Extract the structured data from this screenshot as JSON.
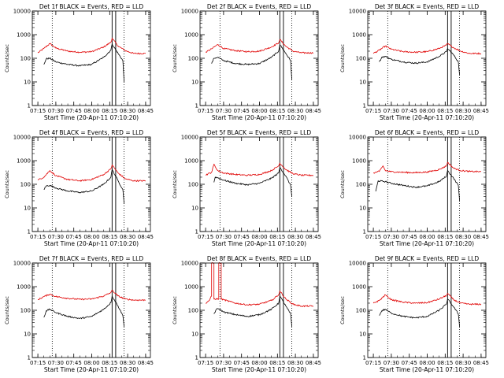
{
  "chart_data": [
    {
      "type": "line",
      "title": "Det 1f BLACK = Events, RED = LLD",
      "xlabel": "Start Time (20-Apr-11 07:10:20)",
      "ylabel": "Counts/sec",
      "yscale": "log",
      "ylim": [
        1,
        10000
      ],
      "yticks": [
        1,
        10,
        100,
        1000,
        10000
      ],
      "ytick_labels": [
        "1",
        "10",
        "100",
        "1000",
        "10000"
      ],
      "xlim": [
        "07:10:20",
        "08:49:00"
      ],
      "xticks": [
        "07:15",
        "07:30",
        "07:45",
        "08:00",
        "08:15",
        "08:30",
        "08:45"
      ],
      "vlines_dotted": [
        "07:27",
        "08:27"
      ],
      "vlines_solid": [
        "08:17",
        "08:20"
      ],
      "series": [
        {
          "color": "#e00000",
          "x": [
            "07:15",
            "07:20",
            "07:25",
            "07:30",
            "07:40",
            "07:50",
            "08:00",
            "08:10",
            "08:16",
            "08:17",
            "08:22",
            "08:28",
            "08:35",
            "08:45"
          ],
          "values": [
            170,
            260,
            420,
            270,
            200,
            180,
            190,
            300,
            480,
            700,
            330,
            210,
            160,
            160
          ]
        },
        {
          "color": "#000000",
          "x": [
            "07:20",
            "07:22",
            "07:25",
            "07:30",
            "07:40",
            "07:50",
            "08:00",
            "08:10",
            "08:16",
            "08:17",
            "08:22",
            "08:26",
            "08:27"
          ],
          "values": [
            55,
            95,
            100,
            70,
            55,
            48,
            55,
            110,
            220,
            400,
            160,
            80,
            10
          ]
        }
      ]
    },
    {
      "type": "line",
      "title": "Det 2f BLACK = Events, RED = LLD",
      "xlabel": "Start Time (20-Apr-11 07:10:20)",
      "ylabel": "Counts/sec",
      "yscale": "log",
      "ylim": [
        1,
        10000
      ],
      "yticks": [
        1,
        10,
        100,
        1000,
        10000
      ],
      "ytick_labels": [
        "1",
        "10",
        "100",
        "1000",
        "10000"
      ],
      "xlim": [
        "07:10:20",
        "08:49:00"
      ],
      "xticks": [
        "07:15",
        "07:30",
        "07:45",
        "08:00",
        "08:15",
        "08:30",
        "08:45"
      ],
      "vlines_dotted": [
        "07:27",
        "08:27"
      ],
      "vlines_solid": [
        "08:17",
        "08:20"
      ],
      "series": [
        {
          "color": "#e00000",
          "x": [
            "07:15",
            "07:20",
            "07:25",
            "07:30",
            "07:40",
            "07:50",
            "08:00",
            "08:10",
            "08:16",
            "08:17",
            "08:22",
            "08:28",
            "08:35",
            "08:45"
          ],
          "values": [
            180,
            250,
            380,
            260,
            210,
            190,
            200,
            300,
            450,
            620,
            320,
            200,
            170,
            170
          ]
        },
        {
          "color": "#000000",
          "x": [
            "07:20",
            "07:22",
            "07:25",
            "07:30",
            "07:40",
            "07:50",
            "08:00",
            "08:10",
            "08:16",
            "08:17",
            "08:22",
            "08:26",
            "08:27"
          ],
          "values": [
            60,
            100,
            110,
            80,
            60,
            55,
            60,
            110,
            200,
            380,
            160,
            80,
            12
          ]
        }
      ]
    },
    {
      "type": "line",
      "title": "Det 3f BLACK = Events, RED = LLD",
      "xlabel": "Start Time (20-Apr-11 07:10:20)",
      "ylabel": "Counts/sec",
      "yscale": "log",
      "ylim": [
        1,
        10000
      ],
      "yticks": [
        1,
        10,
        100,
        1000,
        10000
      ],
      "ytick_labels": [
        "1",
        "10",
        "100",
        "1000",
        "10000"
      ],
      "xlim": [
        "07:10:20",
        "08:49:00"
      ],
      "xticks": [
        "07:15",
        "07:30",
        "07:45",
        "08:00",
        "08:15",
        "08:30",
        "08:45"
      ],
      "vlines_dotted": [
        "07:27",
        "08:27"
      ],
      "vlines_solid": [
        "08:17",
        "08:20"
      ],
      "series": [
        {
          "color": "#e00000",
          "x": [
            "07:15",
            "07:20",
            "07:25",
            "07:30",
            "07:40",
            "07:50",
            "08:00",
            "08:10",
            "08:16",
            "08:17",
            "08:22",
            "08:28",
            "08:35",
            "08:45"
          ],
          "values": [
            160,
            220,
            330,
            240,
            190,
            180,
            190,
            260,
            360,
            420,
            280,
            200,
            160,
            160
          ]
        },
        {
          "color": "#000000",
          "x": [
            "07:20",
            "07:22",
            "07:25",
            "07:30",
            "07:40",
            "07:50",
            "08:00",
            "08:10",
            "08:16",
            "08:17",
            "08:22",
            "08:26",
            "08:27"
          ],
          "values": [
            70,
            110,
            120,
            90,
            70,
            62,
            70,
            120,
            190,
            260,
            140,
            70,
            20
          ]
        }
      ]
    },
    {
      "type": "line",
      "title": "Det 4f BLACK = Events, RED = LLD",
      "xlabel": "Start Time (20-Apr-11 07:10:20)",
      "ylabel": "Counts/sec",
      "yscale": "log",
      "ylim": [
        1,
        10000
      ],
      "yticks": [
        1,
        10,
        100,
        1000,
        10000
      ],
      "ytick_labels": [
        "1",
        "10",
        "100",
        "1000",
        "10000"
      ],
      "xlim": [
        "07:10:20",
        "08:49:00"
      ],
      "xticks": [
        "07:15",
        "07:30",
        "07:45",
        "08:00",
        "08:15",
        "08:30",
        "08:45"
      ],
      "vlines_dotted": [
        "07:27",
        "08:27"
      ],
      "vlines_solid": [
        "08:17",
        "08:20"
      ],
      "series": [
        {
          "color": "#e00000",
          "x": [
            "07:15",
            "07:20",
            "07:25",
            "07:30",
            "07:40",
            "07:50",
            "08:00",
            "08:10",
            "08:16",
            "08:17",
            "08:22",
            "08:28",
            "08:35",
            "08:45"
          ],
          "values": [
            150,
            200,
            380,
            230,
            160,
            140,
            160,
            260,
            450,
            650,
            300,
            170,
            140,
            140
          ]
        },
        {
          "color": "#000000",
          "x": [
            "07:20",
            "07:22",
            "07:25",
            "07:30",
            "07:40",
            "07:50",
            "08:00",
            "08:10",
            "08:16",
            "08:17",
            "08:22",
            "08:26",
            "08:27"
          ],
          "values": [
            60,
            85,
            90,
            70,
            52,
            45,
            52,
            100,
            200,
            420,
            140,
            60,
            15
          ]
        }
      ]
    },
    {
      "type": "line",
      "title": "Det 5f BLACK = Events, RED = LLD",
      "xlabel": "Start Time (20-Apr-11 07:10:20)",
      "ylabel": "Counts/sec",
      "yscale": "log",
      "ylim": [
        1,
        10000
      ],
      "yticks": [
        1,
        10,
        100,
        1000,
        10000
      ],
      "ytick_labels": [
        "1",
        "10",
        "100",
        "1000",
        "10000"
      ],
      "xlim": [
        "07:10:20",
        "08:49:00"
      ],
      "xticks": [
        "07:15",
        "07:30",
        "07:45",
        "08:00",
        "08:15",
        "08:30",
        "08:45"
      ],
      "vlines_dotted": [
        "07:27",
        "08:27"
      ],
      "vlines_solid": [
        "08:17",
        "08:20"
      ],
      "series": [
        {
          "color": "#e00000",
          "x": [
            "07:15",
            "07:20",
            "07:22",
            "07:25",
            "07:30",
            "07:40",
            "07:50",
            "08:00",
            "08:10",
            "08:16",
            "08:17",
            "08:22",
            "08:28",
            "08:35",
            "08:45"
          ],
          "values": [
            250,
            320,
            700,
            380,
            300,
            260,
            240,
            260,
            380,
            600,
            780,
            420,
            280,
            240,
            240
          ]
        },
        {
          "color": "#000000",
          "x": [
            "07:22",
            "07:23",
            "07:25",
            "07:30",
            "07:40",
            "07:50",
            "08:00",
            "08:10",
            "08:16",
            "08:17",
            "08:22",
            "08:26",
            "08:27"
          ],
          "values": [
            120,
            200,
            190,
            150,
            110,
            95,
            110,
            180,
            300,
            520,
            220,
            90,
            30
          ]
        }
      ]
    },
    {
      "type": "line",
      "title": "Det 6f BLACK = Events, RED = LLD",
      "xlabel": "Start Time (20-Apr-11 07:10:20)",
      "ylabel": "Counts/sec",
      "yscale": "log",
      "ylim": [
        1,
        10000
      ],
      "yticks": [
        1,
        10,
        100,
        1000,
        10000
      ],
      "ytick_labels": [
        "1",
        "10",
        "100",
        "1000",
        "10000"
      ],
      "xlim": [
        "07:10:20",
        "08:49:00"
      ],
      "xticks": [
        "07:15",
        "07:30",
        "07:45",
        "08:00",
        "08:15",
        "08:30",
        "08:45"
      ],
      "vlines_dotted": [
        "07:27",
        "08:27"
      ],
      "vlines_solid": [
        "08:17",
        "08:20"
      ],
      "series": [
        {
          "color": "#e00000",
          "x": [
            "07:15",
            "07:20",
            "07:23",
            "07:25",
            "07:30",
            "07:40",
            "07:50",
            "08:00",
            "08:10",
            "08:16",
            "08:17",
            "08:22",
            "08:28",
            "08:35",
            "08:45"
          ],
          "values": [
            300,
            350,
            600,
            380,
            340,
            320,
            310,
            330,
            420,
            600,
            850,
            480,
            380,
            350,
            340
          ]
        },
        {
          "color": "#000000",
          "x": [
            "07:17",
            "07:19",
            "07:25",
            "07:30",
            "07:40",
            "07:50",
            "08:00",
            "08:10",
            "08:16",
            "08:17",
            "08:22",
            "08:26",
            "08:27"
          ],
          "values": [
            50,
            140,
            130,
            110,
            90,
            75,
            85,
            130,
            220,
            380,
            180,
            90,
            20
          ]
        }
      ]
    },
    {
      "type": "line",
      "title": "Det 7f BLACK = Events, RED = LLD",
      "xlabel": "Start Time (20-Apr-11 07:10:20)",
      "ylabel": "Counts/sec",
      "yscale": "log",
      "ylim": [
        1,
        10000
      ],
      "yticks": [
        1,
        10,
        100,
        1000,
        10000
      ],
      "ytick_labels": [
        "1",
        "10",
        "100",
        "1000",
        "10000"
      ],
      "xlim": [
        "07:10:20",
        "08:49:00"
      ],
      "xticks": [
        "07:15",
        "07:30",
        "07:45",
        "08:00",
        "08:15",
        "08:30",
        "08:45"
      ],
      "vlines_dotted": [
        "07:27",
        "08:27"
      ],
      "vlines_solid": [
        "08:17",
        "08:20"
      ],
      "series": [
        {
          "color": "#e00000",
          "x": [
            "07:15",
            "07:20",
            "07:25",
            "07:30",
            "07:40",
            "07:50",
            "08:00",
            "08:10",
            "08:16",
            "08:17",
            "08:22",
            "08:28",
            "08:35",
            "08:45"
          ],
          "values": [
            280,
            380,
            480,
            380,
            320,
            290,
            300,
            400,
            560,
            700,
            400,
            300,
            270,
            270
          ]
        },
        {
          "color": "#000000",
          "x": [
            "07:20",
            "07:22",
            "07:25",
            "07:30",
            "07:40",
            "07:50",
            "08:00",
            "08:10",
            "08:16",
            "08:17",
            "08:22",
            "08:26",
            "08:27"
          ],
          "values": [
            50,
            95,
            110,
            80,
            55,
            45,
            55,
            110,
            210,
            400,
            150,
            60,
            20
          ]
        }
      ]
    },
    {
      "type": "line",
      "title": "Det 8f BLACK = Events, RED = LLD",
      "xlabel": "Start Time (20-Apr-11 07:10:20)",
      "ylabel": "Counts/sec",
      "yscale": "log",
      "ylim": [
        1,
        10000
      ],
      "yticks": [
        1,
        10,
        100,
        1000,
        10000
      ],
      "ytick_labels": [
        "1",
        "10",
        "100",
        "1000",
        "10000"
      ],
      "xlim": [
        "07:10:20",
        "08:49:00"
      ],
      "xticks": [
        "07:15",
        "07:30",
        "07:45",
        "08:00",
        "08:15",
        "08:30",
        "08:45"
      ],
      "vlines_dotted": [
        "07:27",
        "08:27"
      ],
      "vlines_solid": [
        "08:17",
        "08:20"
      ],
      "series": [
        {
          "color": "#e00000",
          "x": [
            "07:15",
            "07:18",
            "07:20",
            "07:20",
            "07:22",
            "07:22",
            "07:26",
            "07:26",
            "07:28",
            "07:28",
            "07:30",
            "07:40",
            "07:50",
            "08:00",
            "08:10",
            "08:16",
            "08:17",
            "08:22",
            "08:28",
            "08:35",
            "08:45"
          ],
          "values": [
            200,
            260,
            400,
            10000,
            10000,
            300,
            300,
            10000,
            10000,
            300,
            280,
            200,
            170,
            180,
            260,
            450,
            650,
            300,
            180,
            150,
            150
          ]
        },
        {
          "color": "#000000",
          "x": [
            "07:22",
            "07:24",
            "07:26",
            "07:30",
            "07:40",
            "07:50",
            "08:00",
            "08:10",
            "08:16",
            "08:17",
            "08:22",
            "08:26",
            "08:27"
          ],
          "values": [
            70,
            110,
            115,
            85,
            65,
            55,
            65,
            110,
            200,
            400,
            150,
            70,
            20
          ]
        }
      ]
    },
    {
      "type": "line",
      "title": "Det 9f BLACK = Events, RED = LLD",
      "xlabel": "Start Time (20-Apr-11 07:10:20)",
      "ylabel": "Counts/sec",
      "yscale": "log",
      "ylim": [
        1,
        10000
      ],
      "yticks": [
        1,
        10,
        100,
        1000,
        10000
      ],
      "ytick_labels": [
        "1",
        "10",
        "100",
        "1000",
        "10000"
      ],
      "xlim": [
        "07:10:20",
        "08:49:00"
      ],
      "xticks": [
        "07:15",
        "07:30",
        "07:45",
        "08:00",
        "08:15",
        "08:30",
        "08:45"
      ],
      "vlines_dotted": [
        "07:27",
        "08:27"
      ],
      "vlines_solid": [
        "08:17",
        "08:20"
      ],
      "series": [
        {
          "color": "#e00000",
          "x": [
            "07:15",
            "07:20",
            "07:25",
            "07:30",
            "07:40",
            "07:50",
            "08:00",
            "08:10",
            "08:16",
            "08:17",
            "08:22",
            "08:28",
            "08:35",
            "08:45"
          ],
          "values": [
            200,
            260,
            450,
            280,
            220,
            200,
            210,
            300,
            420,
            520,
            280,
            200,
            180,
            180
          ]
        },
        {
          "color": "#000000",
          "x": [
            "07:20",
            "07:22",
            "07:25",
            "07:30",
            "07:40",
            "07:50",
            "08:00",
            "08:10",
            "08:16",
            "08:17",
            "08:22",
            "08:26",
            "08:27"
          ],
          "values": [
            60,
            95,
            110,
            75,
            55,
            48,
            55,
            100,
            180,
            300,
            140,
            70,
            20
          ]
        }
      ]
    }
  ]
}
